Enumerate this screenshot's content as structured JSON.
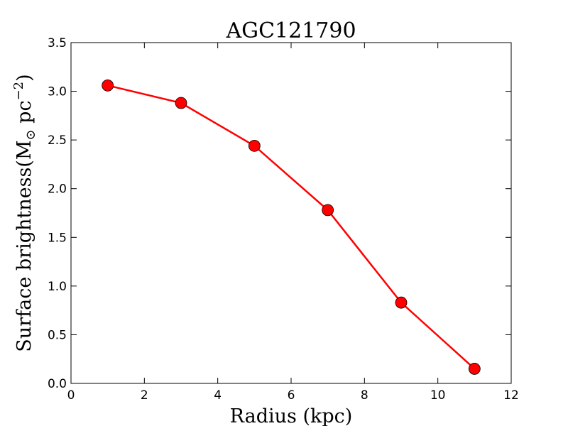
{
  "chart_data": {
    "type": "line",
    "title": "AGC121790",
    "xlabel": "Radius (kpc)",
    "ylabel": "Surface brightness(M⊙ pc⁻²)",
    "ylabel_parts": {
      "main": "Surface brightness(M",
      "sub": "⊙",
      "mid": " pc",
      "sup": "−2",
      "end": ")"
    },
    "xlim": [
      0,
      12
    ],
    "ylim": [
      0.0,
      3.5
    ],
    "xticks": [
      "0",
      "2",
      "4",
      "6",
      "8",
      "10",
      "12"
    ],
    "yticks": [
      "0.0",
      "0.5",
      "1.0",
      "1.5",
      "2.0",
      "2.5",
      "3.0",
      "3.5"
    ],
    "grid": false,
    "series": [
      {
        "x": [
          1,
          3,
          5,
          7,
          9,
          11
        ],
        "y": [
          3.06,
          2.88,
          2.44,
          1.78,
          0.83,
          0.15
        ],
        "color": "#ff0000",
        "marker": "circle"
      }
    ]
  }
}
